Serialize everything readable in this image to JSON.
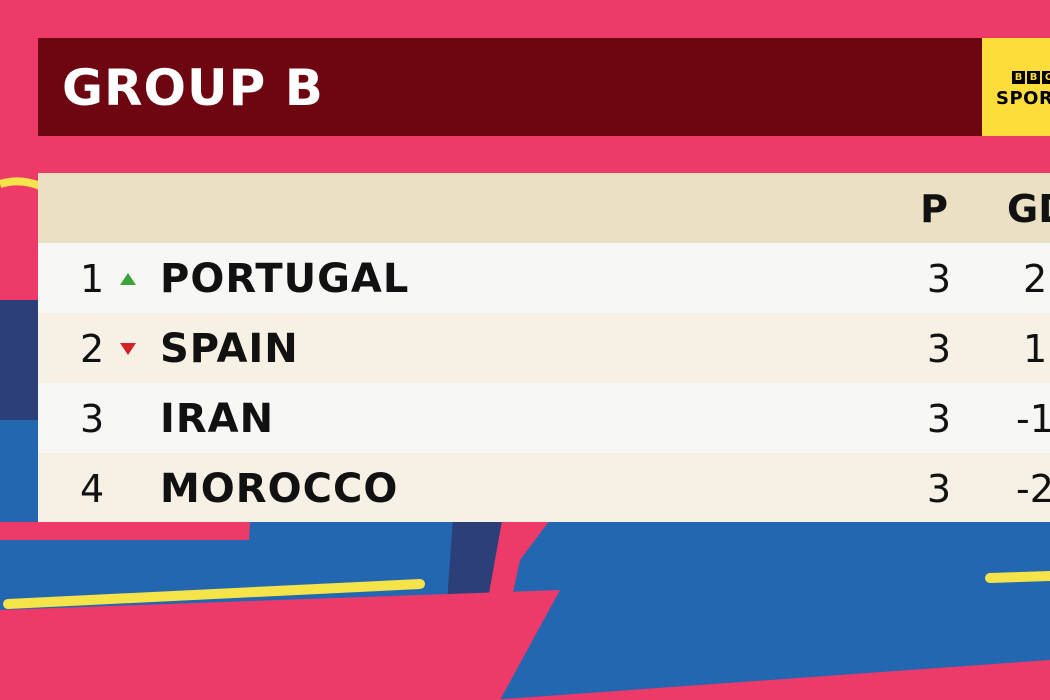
{
  "title": "GROUP B",
  "logo": {
    "letters": [
      "B",
      "B",
      "C"
    ],
    "text": "SPORT"
  },
  "columns": {
    "played": "P",
    "goal_difference": "GD"
  },
  "rows": [
    {
      "position": "1",
      "movement": "up",
      "team": "PORTUGAL",
      "played": "3",
      "gd": "2"
    },
    {
      "position": "2",
      "movement": "down",
      "team": "SPAIN",
      "played": "3",
      "gd": "1"
    },
    {
      "position": "3",
      "movement": "none",
      "team": "IRAN",
      "played": "3",
      "gd": "-1"
    },
    {
      "position": "4",
      "movement": "none",
      "team": "MOROCCO",
      "played": "3",
      "gd": "-2"
    }
  ],
  "colors": {
    "background": "#ee3a68",
    "title_bar": "#6e0611",
    "logo": "#fddd3a",
    "header_row": "#ebdfc4",
    "up_arrow": "#3ba33b",
    "down_arrow": "#d42027"
  }
}
